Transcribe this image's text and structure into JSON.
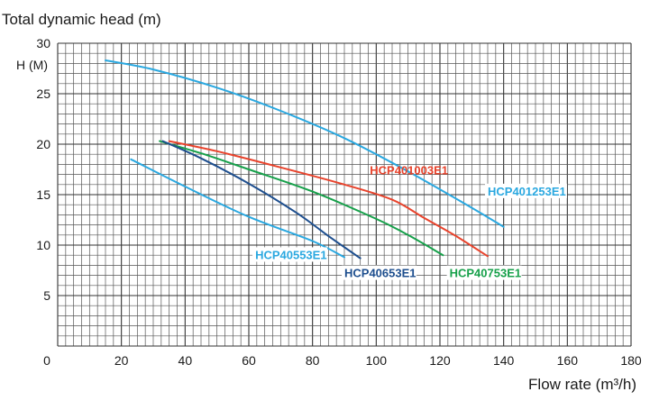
{
  "chart_data": {
    "type": "line",
    "title": "Total dynamic head (m)",
    "ylabel": "H (M)",
    "xlabel": "Flow rate (m³/h)",
    "xlim": [
      0,
      180
    ],
    "ylim": [
      0,
      30
    ],
    "xticks": [
      0,
      20,
      40,
      60,
      80,
      100,
      120,
      140,
      160,
      180
    ],
    "yticks": [
      5,
      10,
      15,
      20,
      25,
      30
    ],
    "grid": true,
    "series": [
      {
        "name": "HCP401253E1",
        "color": "#2aa8e0",
        "x": [
          15,
          30,
          50,
          70,
          90,
          110,
          130,
          140
        ],
        "y": [
          28.3,
          27.4,
          25.6,
          23.3,
          20.6,
          17.3,
          13.7,
          11.8
        ]
      },
      {
        "name": "HCP401003E1",
        "color": "#e8432c",
        "x": [
          35,
          50,
          70,
          90,
          105,
          115,
          125,
          135
        ],
        "y": [
          20.3,
          19.3,
          17.7,
          16.0,
          14.5,
          12.7,
          10.9,
          8.9
        ]
      },
      {
        "name": "HCP40753E1",
        "color": "#16a04a",
        "x": [
          32,
          45,
          60,
          80,
          100,
          110,
          121
        ],
        "y": [
          20.3,
          19.1,
          17.5,
          15.3,
          12.6,
          11.0,
          9.0
        ]
      },
      {
        "name": "HCP40653E1",
        "color": "#1d4e8e",
        "x": [
          33,
          45,
          60,
          75,
          85,
          95
        ],
        "y": [
          20.3,
          18.6,
          16.1,
          13.2,
          10.9,
          8.7
        ]
      },
      {
        "name": "HCP40553E1",
        "color": "#2aa8e0",
        "x": [
          23,
          40,
          60,
          80,
          90
        ],
        "y": [
          18.5,
          15.8,
          12.8,
          10.4,
          8.8
        ]
      }
    ],
    "labels": [
      {
        "text": "HCP401003E1",
        "color": "#e8432c",
        "box": false,
        "x": 98,
        "y": 17.2
      },
      {
        "text": "HCP401253E1",
        "color": "#2aa8e0",
        "box": true,
        "x": 135,
        "y": 15.1
      },
      {
        "text": "HCP40553E1",
        "color": "#2aa8e0",
        "box": true,
        "x": 62,
        "y": 8.8
      },
      {
        "text": "HCP40653E1",
        "color": "#1d4e8e",
        "box": true,
        "x": 90,
        "y": 7.0
      },
      {
        "text": "HCP40753E1",
        "color": "#16a04a",
        "box": true,
        "x": 123,
        "y": 7.0
      }
    ]
  }
}
